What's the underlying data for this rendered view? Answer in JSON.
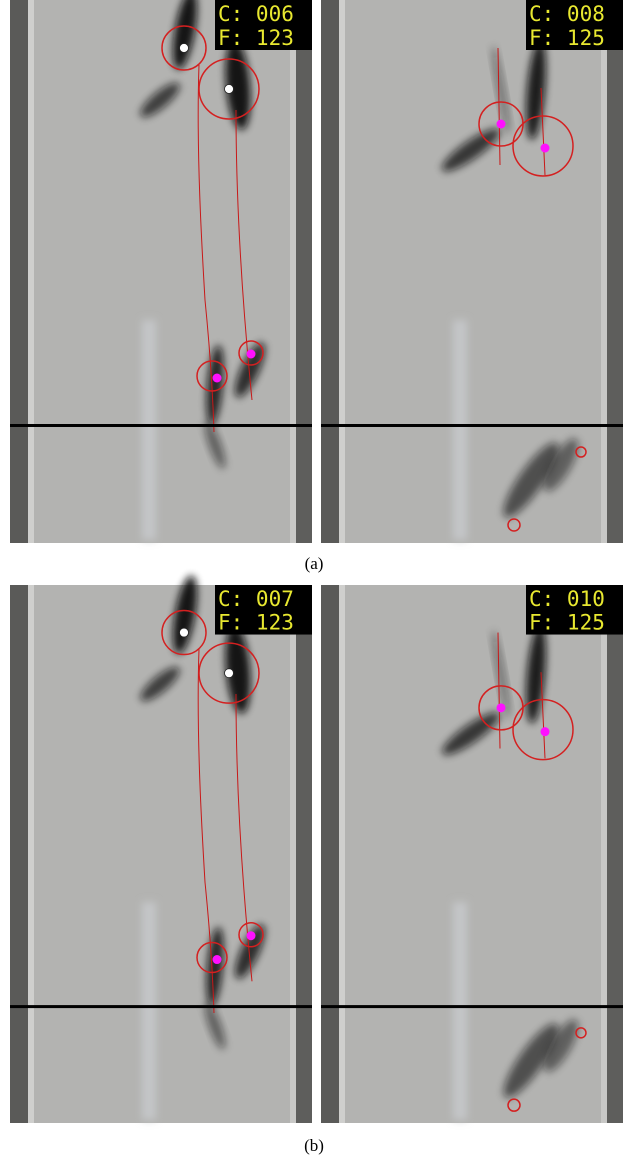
{
  "figures": [
    {
      "label": "(a)",
      "frames": [
        {
          "counter": "C: 006",
          "frame": "F: 123"
        },
        {
          "counter": "C: 008",
          "frame": "F: 125"
        }
      ]
    },
    {
      "label": "(b)",
      "frames": [
        {
          "counter": "C: 007",
          "frame": "F: 123"
        },
        {
          "counter": "C: 010",
          "frame": "F: 125"
        }
      ]
    }
  ]
}
